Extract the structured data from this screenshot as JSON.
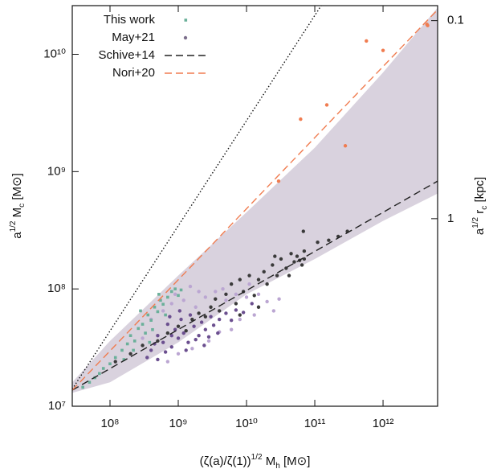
{
  "chart_data": {
    "type": "scatter",
    "x_label": [
      "(ζ(a)/ζ(1))",
      "1/2",
      " M",
      "h",
      " [M⊙]"
    ],
    "y_label": [
      "a",
      "1/2",
      " M",
      "c",
      " [M⊙]"
    ],
    "y2_label": [
      "a",
      "1/2",
      " r",
      "c",
      " [kpc]"
    ],
    "xscale": "log",
    "yscale": "log",
    "y2scale": "log",
    "xlim": [
      28000000.0,
      6300000000000.0
    ],
    "ylim": [
      10000000.0,
      26000000000.0
    ],
    "y2lim": [
      8.85,
      0.084
    ],
    "xticks": [
      {
        "value": 100000000.0,
        "label": "10⁸"
      },
      {
        "value": 1000000000.0,
        "label": "10⁹"
      },
      {
        "value": 10000000000.0,
        "label": "10¹⁰"
      },
      {
        "value": 100000000000.0,
        "label": "10¹¹"
      },
      {
        "value": 1000000000000.0,
        "label": "10¹²"
      }
    ],
    "yticks": [
      {
        "value": 10000000.0,
        "label": "10⁷"
      },
      {
        "value": 100000000.0,
        "label": "10⁸"
      },
      {
        "value": 1000000000.0,
        "label": "10⁹"
      },
      {
        "value": 10000000000.0,
        "label": "10¹⁰"
      }
    ],
    "y2ticks": [
      0.1,
      1
    ],
    "legend": "upper left",
    "band": {
      "color": "#d9d2de",
      "x": [
        28000000.0,
        100000000.0,
        1000000000.0,
        10000000000.0,
        100000000000.0,
        1000000000000.0,
        6300000000000.0
      ],
      "upper": [
        16000000.0,
        36000000.0,
        130000000.0,
        450000000.0,
        1600000000.0,
        7000000000.0,
        25000000000.0
      ],
      "lower": [
        13000000.0,
        16000000.0,
        35000000.0,
        90000000.0,
        180000000.0,
        380000000.0,
        650000000.0
      ]
    },
    "series": [
      {
        "kind": "points",
        "marker": "dot",
        "color": "#bba6d2",
        "x": [
          300000000.0,
          400000000.0,
          600000000.0,
          800000000.0,
          1200000000.0,
          1800000000.0,
          2500000000.0,
          3500000000.0,
          5000000000.0,
          7000000000.0,
          10000000000.0,
          15000000000.0,
          20000000000.0,
          30000000000.0,
          25000000000.0,
          13000000000.0,
          8000000000.0,
          6000000000.0,
          4000000000.0,
          2800000000.0,
          1600000000.0,
          1000000000.0,
          700000000.0,
          2000000000.0,
          4500000000.0,
          900000000.0,
          1500000000.0,
          11000000000.0
        ],
        "values": [
          38000000.0,
          55000000.0,
          65000000.0,
          75000000.0,
          80000000.0,
          70000000.0,
          85000000.0,
          95000000.0,
          80000000.0,
          90000000.0,
          85000000.0,
          90000000.0,
          78000000.0,
          82000000.0,
          65000000.0,
          60000000.0,
          55000000.0,
          45000000.0,
          43000000.0,
          36000000.0,
          31000000.0,
          28000000.0,
          24000000.0,
          95000000.0,
          100000000.0,
          90000000.0,
          105000000.0,
          110000000.0
        ]
      },
      {
        "kind": "points",
        "marker": "dot",
        "color": "#6b4f8f",
        "x": [
          400000000.0,
          500000000.0,
          600000000.0,
          700000000.0,
          800000000.0,
          900000000.0,
          1000000000.0,
          1100000000.0,
          1200000000.0,
          1400000000.0,
          1500000000.0,
          1700000000.0,
          2000000000.0,
          2200000000.0,
          2500000000.0,
          3000000000.0,
          3300000000.0,
          4000000000.0,
          5000000000.0,
          6000000000.0,
          7000000000.0,
          9000000000.0,
          12000000000.0,
          350000000.0,
          450000000.0,
          650000000.0,
          800000000.0,
          1300000000.0,
          1800000000.0,
          2800000000.0,
          500000000.0,
          1050000000.0,
          750000000.0,
          2400000000.0,
          3800000000.0
        ],
        "values": [
          30000000.0,
          40000000.0,
          35000000.0,
          50000000.0,
          32000000.0,
          45000000.0,
          38000000.0,
          55000000.0,
          42000000.0,
          35000000.0,
          60000000.0,
          48000000.0,
          40000000.0,
          52000000.0,
          45000000.0,
          58000000.0,
          49000000.0,
          55000000.0,
          62000000.0,
          54000000.0,
          66000000.0,
          63000000.0,
          75000000.0,
          26000000.0,
          34000000.0,
          29000000.0,
          40000000.0,
          30000000.0,
          37000000.0,
          39000000.0,
          25000000.0,
          65000000.0,
          58000000.0,
          33000000.0,
          42000000.0
        ]
      },
      {
        "kind": "points",
        "marker": "square",
        "name": "This work",
        "color": "#6ab09a",
        "x": [
          40000000.0,
          50000000.0,
          60000000.0,
          70000000.0,
          80000000.0,
          100000000.0,
          120000000.0,
          150000000.0,
          180000000.0,
          200000000.0,
          230000000.0,
          260000000.0,
          300000000.0,
          330000000.0,
          360000000.0,
          400000000.0,
          450000000.0,
          500000000.0,
          550000000.0,
          600000000.0,
          700000000.0,
          800000000.0,
          900000000.0,
          1000000000.0,
          1100000000.0,
          220000000.0,
          160000000.0,
          420000000.0,
          650000000.0,
          380000000.0,
          280000000.0,
          520000000.0
        ],
        "values": [
          14500000.0,
          16000000.0,
          17500000.0,
          19000000.0,
          21000000.0,
          23000000.0,
          26000000.0,
          30000000.0,
          34000000.0,
          40000000.0,
          36000000.0,
          46000000.0,
          50000000.0,
          42000000.0,
          60000000.0,
          54000000.0,
          70000000.0,
          64000000.0,
          80000000.0,
          74000000.0,
          85000000.0,
          95000000.0,
          100000000.0,
          88000000.0,
          98000000.0,
          30000000.0,
          25000000.0,
          45000000.0,
          60000000.0,
          35000000.0,
          65000000.0,
          90000000.0
        ]
      },
      {
        "kind": "points",
        "marker": "dot",
        "name": "May+21",
        "color": "#3a3a3a",
        "legend_color": "#7c6f8c",
        "x": [
          120000000.0,
          200000000.0,
          300000000.0,
          500000000.0,
          700000000.0,
          1000000000.0,
          1300000000.0,
          1600000000.0,
          2000000000.0,
          2500000000.0,
          3000000000.0,
          3500000000.0,
          4000000000.0,
          5000000000.0,
          6000000000.0,
          7000000000.0,
          8000000000.0,
          9000000000.0,
          11000000000.0,
          13000000000.0,
          15000000000.0,
          18000000000.0,
          20000000000.0,
          24000000000.0,
          28000000000.0,
          32000000000.0,
          38000000000.0,
          45000000000.0,
          50000000000.0,
          55000000000.0,
          60000000000.0,
          65000000000.0,
          70000000000.0,
          70000000000.0,
          68000000000.0,
          110000000000.0,
          160000000000.0,
          220000000000.0,
          300000000000.0,
          15000000000.0,
          8000000000.0,
          26000000000.0,
          42000000000.0
        ],
        "values": [
          24000000.0,
          28000000.0,
          33000000.0,
          36000000.0,
          42000000.0,
          48000000.0,
          44000000.0,
          55000000.0,
          62000000.0,
          58000000.0,
          70000000.0,
          82000000.0,
          65000000.0,
          90000000.0,
          110000000.0,
          75000000.0,
          120000000.0,
          95000000.0,
          130000000.0,
          88000000.0,
          120000000.0,
          140000000.0,
          110000000.0,
          160000000.0,
          130000000.0,
          180000000.0,
          150000000.0,
          200000000.0,
          170000000.0,
          190000000.0,
          175000000.0,
          160000000.0,
          180000000.0,
          210000000.0,
          310000000.0,
          250000000.0,
          260000000.0,
          280000000.0,
          310000000.0,
          70000000.0,
          60000000.0,
          190000000.0,
          130000000.0
        ]
      },
      {
        "kind": "points",
        "marker": "dot",
        "color": "#f07c50",
        "x": [
          29500000000.0,
          62000000000.0,
          150000000000.0,
          280000000000.0,
          570000000000.0,
          1000000000000.0,
          4400000000000.0,
          4500000000000.0
        ],
        "values": [
          830000000.0,
          2800000000.0,
          3700000000.0,
          1660000000.0,
          13000000000.0,
          10800000000.0,
          18000000000.0,
          17600000000.0
        ]
      },
      {
        "kind": "line",
        "dash": "1.5,2.5",
        "color": "#111",
        "x": [
          28000000.0,
          124000000000.0
        ],
        "values": [
          14000000.0,
          26000000000.0
        ]
      },
      {
        "kind": "line",
        "name": "Schive+14",
        "dash": "9,5",
        "color": "#222",
        "x": [
          28000000.0,
          6300000000000.0
        ],
        "values": [
          13700000.0,
          830000000.0
        ]
      },
      {
        "kind": "line",
        "name": "Nori+20",
        "dash": "9,5",
        "color": "#f07c50",
        "x": [
          28000000.0,
          6300000000000.0
        ],
        "values": [
          13700000.0,
          24000000000.0
        ]
      }
    ]
  }
}
